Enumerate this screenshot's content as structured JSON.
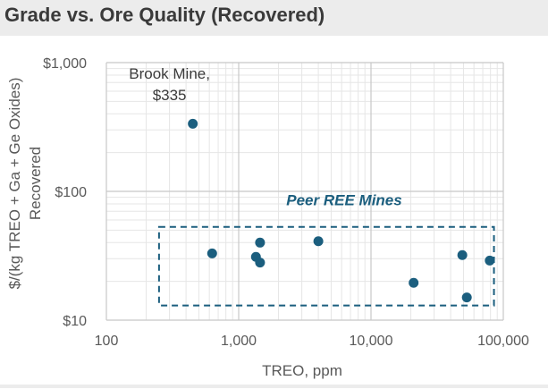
{
  "chart_data": {
    "type": "scatter",
    "title": "Grade vs. Ore Quality (Recovered)",
    "xlabel": "TREO, ppm",
    "ylabel": [
      "$/(kg TREO + Ga + Ge Oxides)",
      "Recovered"
    ],
    "xscale": "log",
    "yscale": "log",
    "xlim": [
      100,
      100000
    ],
    "ylim": [
      10,
      1000
    ],
    "xticks": [
      {
        "value": 100,
        "label": "100"
      },
      {
        "value": 1000,
        "label": "1,000"
      },
      {
        "value": 10000,
        "label": "10,000"
      },
      {
        "value": 100000,
        "label": "100,000"
      }
    ],
    "yticks": [
      {
        "value": 10,
        "label": "$10"
      },
      {
        "value": 100,
        "label": "$100"
      },
      {
        "value": 1000,
        "label": "$1,000"
      }
    ],
    "grid": true,
    "marker_color": "#1b5e7e",
    "points": [
      {
        "x": 450,
        "y": 335
      },
      {
        "x": 630,
        "y": 33
      },
      {
        "x": 1350,
        "y": 31
      },
      {
        "x": 1450,
        "y": 40
      },
      {
        "x": 1450,
        "y": 28
      },
      {
        "x": 4000,
        "y": 41
      },
      {
        "x": 21000,
        "y": 19.5
      },
      {
        "x": 49000,
        "y": 32
      },
      {
        "x": 53000,
        "y": 15
      },
      {
        "x": 79000,
        "y": 29
      }
    ],
    "annotations": [
      {
        "text": "Brook Mine,",
        "x": 300,
        "y": 750
      },
      {
        "text": "$335",
        "x": 300,
        "y": 510
      }
    ],
    "group_box": {
      "label": "Peer REE Mines",
      "x_range": [
        250,
        85000
      ],
      "y_range": [
        13,
        53
      ],
      "color": "#1b5e7e"
    }
  }
}
